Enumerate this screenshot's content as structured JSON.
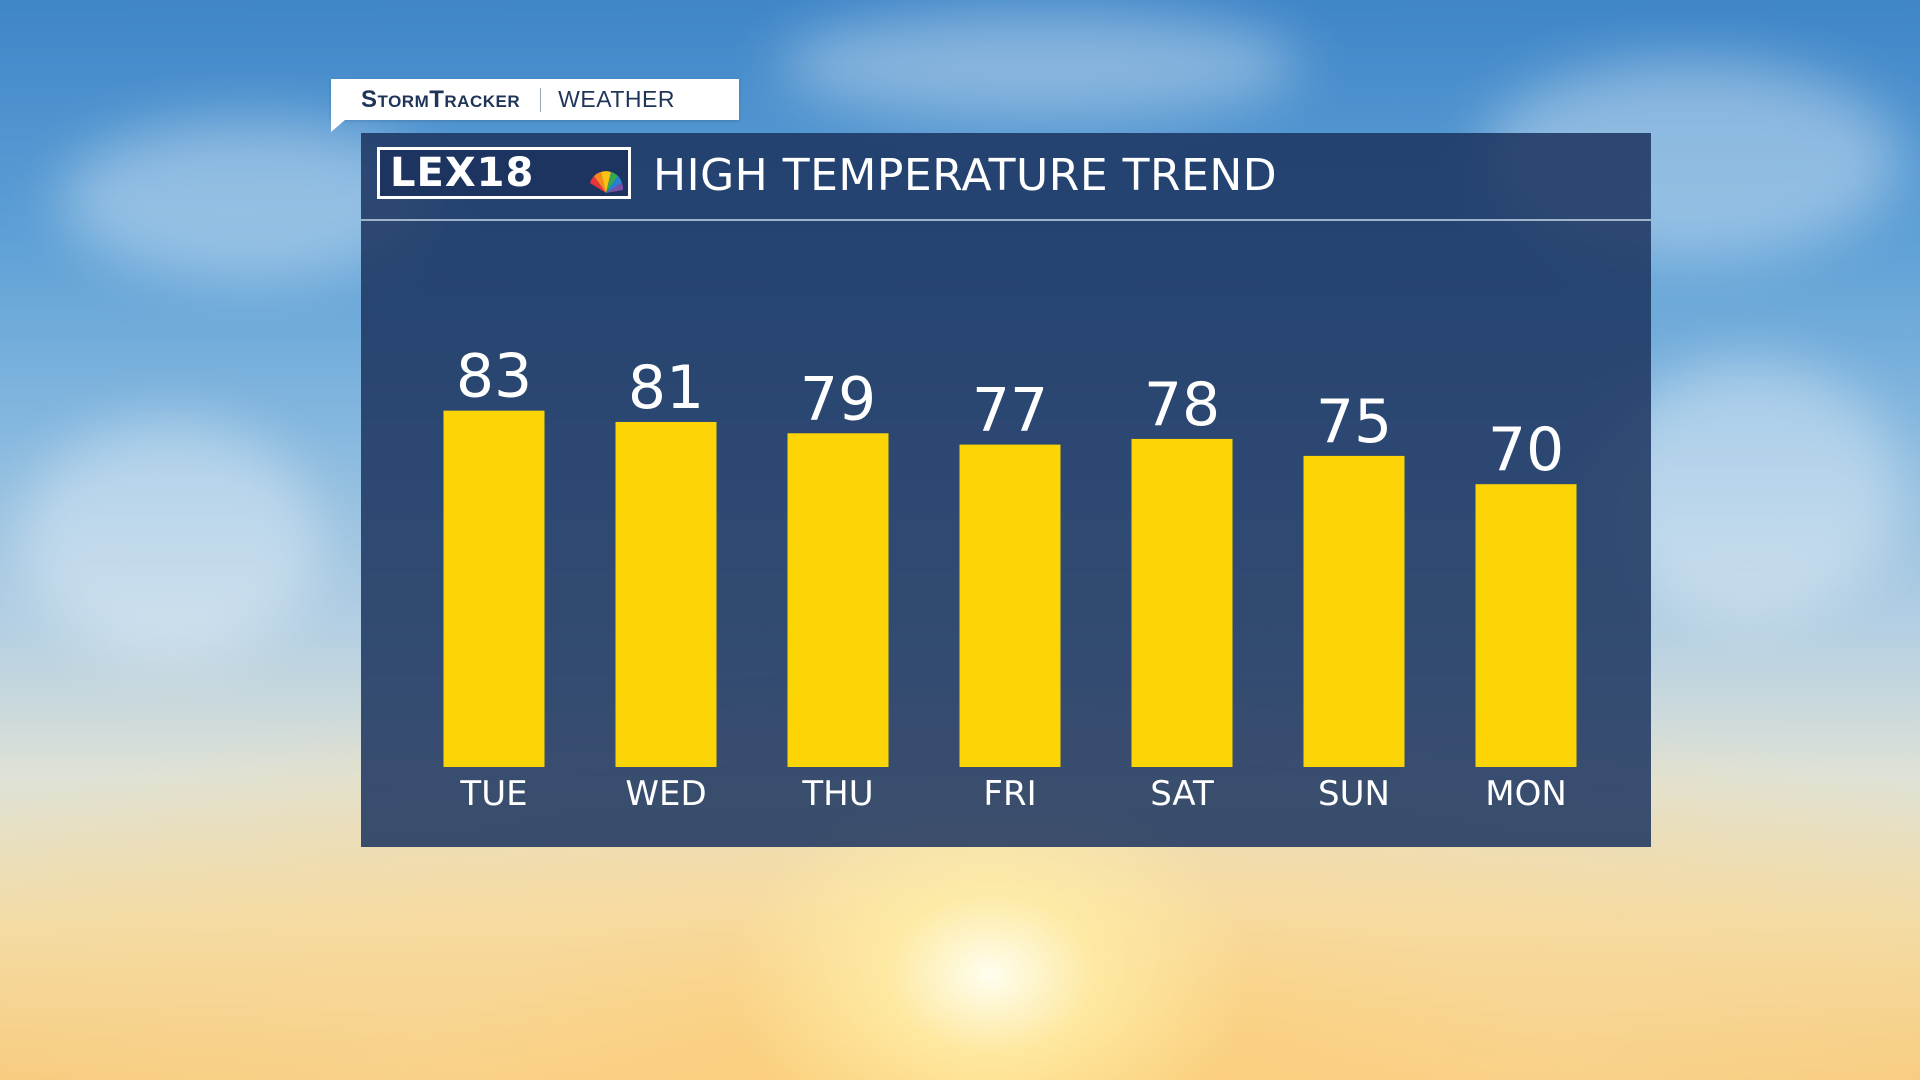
{
  "brand": {
    "storm": "StormTracker",
    "weather": "WEATHER",
    "station_logo": "LEX18"
  },
  "chart_data": {
    "type": "bar",
    "title": "HIGH TEMPERATURE TREND",
    "categories": [
      "TUE",
      "WED",
      "THU",
      "FRI",
      "SAT",
      "SUN",
      "MON"
    ],
    "values": [
      83,
      81,
      79,
      77,
      78,
      75,
      70
    ],
    "ylim": [
      20,
      84
    ],
    "bar_color": "#fdd506",
    "grid": false,
    "data_labels": true
  }
}
